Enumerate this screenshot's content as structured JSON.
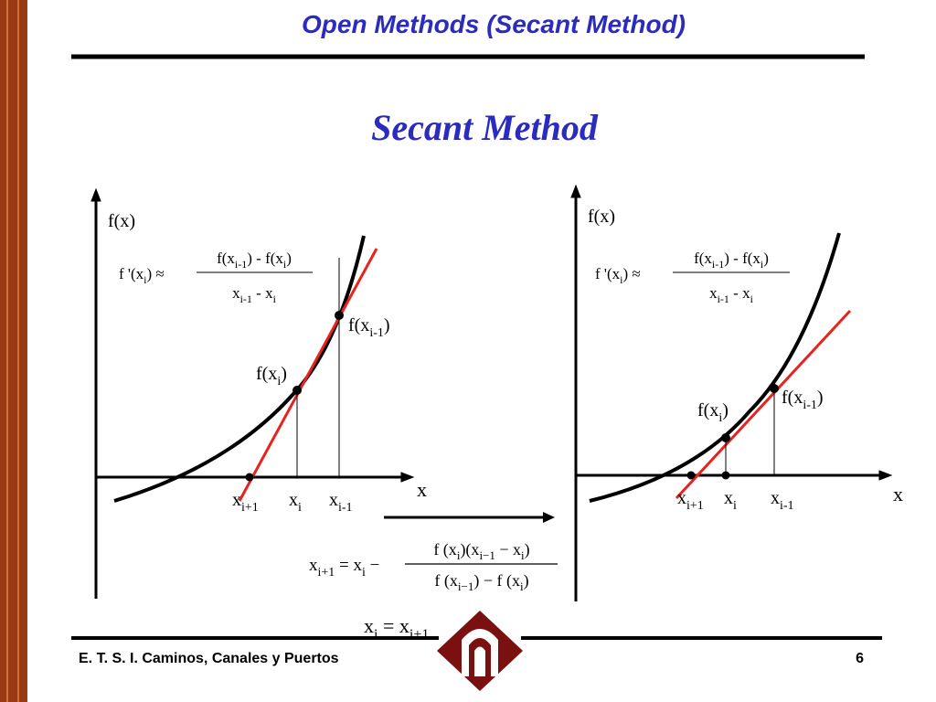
{
  "header": {
    "title": "Open Methods (Secant Method)"
  },
  "slide": {
    "heading": "Secant Method"
  },
  "left_graph": {
    "y_label": "f(x)",
    "x_label": "x",
    "derivative": {
      "lhs": [
        {
          "text": "f '(x"
        },
        {
          "sub": "i"
        },
        {
          "text": ") ≈"
        }
      ],
      "numerator": [
        {
          "text": "f(x"
        },
        {
          "sub": "i-1"
        },
        {
          "text": ") - f(x"
        },
        {
          "sub": "i"
        },
        {
          "text": ")"
        }
      ],
      "denominator": [
        {
          "text": "x"
        },
        {
          "sub": "i-1"
        },
        {
          "text": " - x"
        },
        {
          "sub": "i"
        }
      ]
    },
    "point_labels": [
      [
        {
          "text": "f(x"
        },
        {
          "sub": "i-1"
        },
        {
          "text": ")"
        }
      ],
      [
        {
          "text": "f(x"
        },
        {
          "sub": "i"
        },
        {
          "text": ")"
        }
      ]
    ],
    "axis_labels": [
      [
        {
          "text": "x"
        },
        {
          "sub": "i+1"
        }
      ],
      [
        {
          "text": "x"
        },
        {
          "sub": "i"
        }
      ],
      [
        {
          "text": "x"
        },
        {
          "sub": "i-1"
        }
      ]
    ]
  },
  "right_graph": {
    "y_label": "f(x)",
    "x_label": "x",
    "derivative": {
      "lhs": [
        {
          "text": "f '(x"
        },
        {
          "sub": "i"
        },
        {
          "text": ") ≈"
        }
      ],
      "numerator": [
        {
          "text": "f(x"
        },
        {
          "sub": "i-1"
        },
        {
          "text": ") - f(x"
        },
        {
          "sub": "i"
        },
        {
          "text": ")"
        }
      ],
      "denominator": [
        {
          "text": "x"
        },
        {
          "sub": "i-1"
        },
        {
          "text": " - x"
        },
        {
          "sub": "i"
        }
      ]
    },
    "point_labels": [
      [
        {
          "text": "f(x"
        },
        {
          "sub": "i-1"
        },
        {
          "text": ")"
        }
      ],
      [
        {
          "text": "f(x"
        },
        {
          "sub": "i"
        },
        {
          "text": ")"
        }
      ]
    ],
    "axis_labels": [
      [
        {
          "text": "x"
        },
        {
          "sub": "i+1"
        }
      ],
      [
        {
          "text": "x"
        },
        {
          "sub": "i"
        }
      ],
      [
        {
          "text": "x"
        },
        {
          "sub": "i-1"
        }
      ]
    ]
  },
  "formula": {
    "lhs": [
      {
        "text": "x"
      },
      {
        "sub": "i+1"
      },
      {
        "text": " = x"
      },
      {
        "sub": "i"
      },
      {
        "text": " −"
      }
    ],
    "numerator": [
      {
        "text": "f (x"
      },
      {
        "sub": "i"
      },
      {
        "text": ")(x"
      },
      {
        "sub": "i−1"
      },
      {
        "text": " − x"
      },
      {
        "sub": "i"
      },
      {
        "text": ")"
      }
    ],
    "denominator": [
      {
        "text": "f (x"
      },
      {
        "sub": "i−1"
      },
      {
        "text": ") − f (x"
      },
      {
        "sub": "i"
      },
      {
        "text": ")"
      }
    ],
    "update": [
      {
        "text": "x"
      },
      {
        "sub": "i"
      },
      {
        "text": " = x"
      },
      {
        "sub": "i+1"
      }
    ]
  },
  "footer": {
    "text": "E. T. S. I. Caminos, Canales y Puertos",
    "page": "6"
  }
}
